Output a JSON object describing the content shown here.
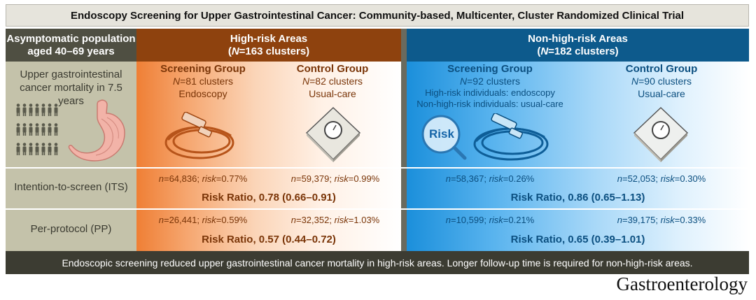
{
  "title": "Endoscopy Screening for Upper Gastrointestinal Cancer: Community-based, Multicenter, Cluster Randomized Clinical Trial",
  "left_header": {
    "line1": "Asymptomatic population",
    "line2": "aged 40–69 years"
  },
  "high_risk": {
    "title": "High-risk Areas",
    "clusters_prefix": "(",
    "clusters_n": "N",
    "clusters_rest": "=163 clusters)",
    "screening": {
      "title": "Screening Group",
      "n_sym": "N",
      "n_rest": "=81 clusters",
      "method": "Endoscopy"
    },
    "control": {
      "title": "Control Group",
      "n_sym": "N",
      "n_rest": "=82 clusters",
      "method": "Usual-care"
    },
    "its": {
      "screen_n": "=64,836; ",
      "screen_risk": "=0.77%",
      "control_n": "=59,379; ",
      "control_risk": "=0.99%",
      "rr": "Risk Ratio, 0.78 (0.66–0.91)"
    },
    "pp": {
      "screen_n": "=26,441; ",
      "screen_risk": "=0.59%",
      "control_n": "=32,352; ",
      "control_risk": "=1.03%",
      "rr": "Risk Ratio, 0.57 (0.44–0.72)"
    }
  },
  "non_high_risk": {
    "title": "Non-high-risk Areas",
    "clusters_prefix": "(",
    "clusters_n": "N",
    "clusters_rest": "=182 clusters)",
    "screening": {
      "title": "Screening Group",
      "n_sym": "N",
      "n_rest": "=92 clusters",
      "method1": "High-risk individuals: endoscopy",
      "method2": "Non-high-risk individuals: usual-care",
      "risk_badge": "Risk"
    },
    "control": {
      "title": "Control Group",
      "n_sym": "N",
      "n_rest": "=90 clusters",
      "method": "Usual-care"
    },
    "its": {
      "screen_n": "=58,367; ",
      "screen_risk": "=0.26%",
      "control_n": "=52,053; ",
      "control_risk": "=0.30%",
      "rr": "Risk Ratio, 0.86 (0.65–1.13)"
    },
    "pp": {
      "screen_n": "=10,599; ",
      "screen_risk": "=0.21%",
      "control_n": "=39,175; ",
      "control_risk": "=0.33%",
      "rr": "Risk Ratio, 0.65 (0.39–1.01)"
    }
  },
  "labels": {
    "n": "n",
    "risk": "risk"
  },
  "left_rows": {
    "outcome_line1": "Upper gastrointestinal",
    "outcome_line2": "cancer mortality in 7.5 years",
    "its": "Intention-to-screen (ITS)",
    "pp": "Per-protocol (PP)"
  },
  "footer": "Endoscopic screening reduced upper gastrointestinal cancer mortality in high-risk areas. Longer follow-up time is required for non-high-risk areas.",
  "journal": "Gastroenterology",
  "colors": {
    "high_risk": "#8e420e",
    "high_risk_text": "#7a3508",
    "non_high_risk": "#0d5a8c",
    "non_high_risk_text": "#0b4f80"
  }
}
